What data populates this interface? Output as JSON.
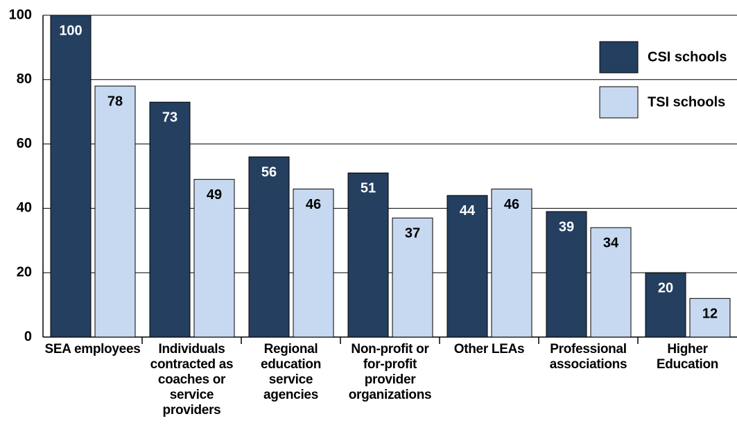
{
  "chart_data": {
    "type": "bar",
    "categories": [
      "SEA employees",
      "Individuals contracted as coaches or service providers",
      "Regional education service agencies",
      "Non-profit or for-profit provider organizations",
      "Other LEAs",
      "Professional associations",
      "Higher Education"
    ],
    "series": [
      {
        "name": "CSI schools",
        "color": "#243f60",
        "values": [
          100,
          73,
          56,
          51,
          44,
          39,
          20
        ]
      },
      {
        "name": "TSI schools",
        "color": "#c6d9f0",
        "values": [
          78,
          49,
          46,
          37,
          46,
          34,
          12
        ]
      }
    ],
    "ylim": [
      0,
      100
    ],
    "yticks": [
      0,
      20,
      40,
      60,
      80,
      100
    ],
    "grid": true,
    "legend": "upper right"
  }
}
